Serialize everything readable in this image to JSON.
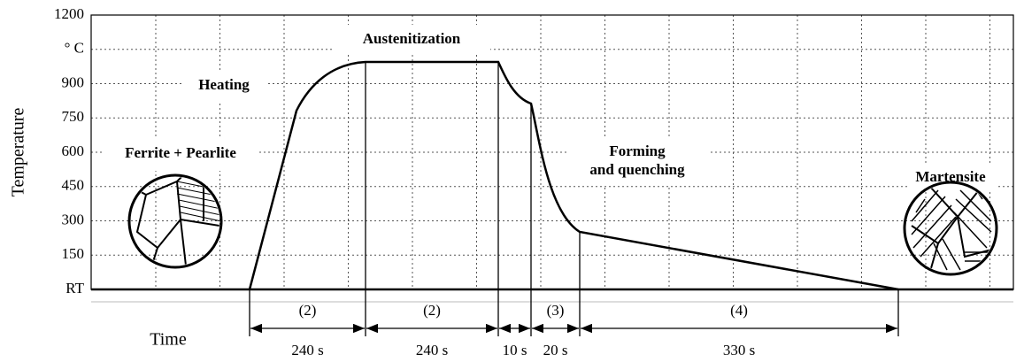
{
  "y_axis": {
    "title": "Temperature",
    "labels": [
      "1200",
      "° C",
      "900",
      "750",
      "600",
      "450",
      "300",
      "150",
      "RT"
    ]
  },
  "x_axis": {
    "title": "Time"
  },
  "annotations": {
    "heating": "Heating",
    "austenitization": "Austenitization",
    "initial_phase": "Ferrite + Pearlite",
    "forming": [
      "Forming",
      "and quenching"
    ],
    "final_phase": "Martensite"
  },
  "stages": [
    {
      "label": "(2)",
      "duration": "240 s"
    },
    {
      "label": "(2)",
      "duration": "240 s"
    },
    {
      "duration": "10 s"
    },
    {
      "label": "(3)",
      "duration": "20 s"
    },
    {
      "label": "(4)",
      "duration": "330 s"
    }
  ]
}
